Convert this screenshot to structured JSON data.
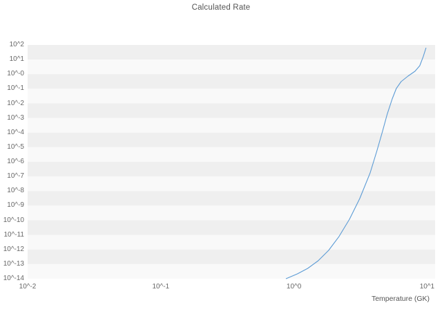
{
  "title": "Calculated Rate",
  "axes": {
    "xlabel": "Temperature (GK)",
    "x_ticks": [
      {
        "label": "10^-2",
        "log10": -2
      },
      {
        "label": "10^-1",
        "log10": -1
      },
      {
        "label": "10^0",
        "log10": 0
      },
      {
        "label": "10^1",
        "log10": 1
      }
    ],
    "y_ticks": [
      {
        "label": "10^2",
        "log10": 2
      },
      {
        "label": "10^1",
        "log10": 1
      },
      {
        "label": "10^-0",
        "log10": 0
      },
      {
        "label": "10^-1",
        "log10": -1
      },
      {
        "label": "10^-2",
        "log10": -2
      },
      {
        "label": "10^-3",
        "log10": -3
      },
      {
        "label": "10^-4",
        "log10": -4
      },
      {
        "label": "10^-5",
        "log10": -5
      },
      {
        "label": "10^-6",
        "log10": -6
      },
      {
        "label": "10^-7",
        "log10": -7
      },
      {
        "label": "10^-8",
        "log10": -8
      },
      {
        "label": "10^-9",
        "log10": -9
      },
      {
        "label": "10^-10",
        "log10": -10
      },
      {
        "label": "10^-11",
        "log10": -11
      },
      {
        "label": "10^-12",
        "log10": -12
      },
      {
        "label": "10^-13",
        "log10": -13
      },
      {
        "label": "10^-14",
        "log10": -14
      }
    ]
  },
  "chart_data": {
    "type": "line",
    "title": "Calculated Rate",
    "xlabel": "Temperature (GK)",
    "ylabel": "",
    "x_scale": "log",
    "y_scale": "log",
    "xlim_log10": [
      -2,
      1.06
    ],
    "ylim_log10": [
      -14,
      2
    ],
    "grid": "horizontal-bands",
    "band_colors": [
      "#efefef",
      "#f9f9f9"
    ],
    "legend": "none",
    "series": [
      {
        "name": "calculated-rate",
        "color": "#5b9bd5",
        "temperature_gk": [
          0.87,
          1.06,
          1.27,
          1.52,
          1.82,
          2.18,
          2.61,
          3.12,
          3.73,
          4.2,
          4.62,
          5.02,
          5.47,
          5.87,
          6.38,
          7.19,
          8.11,
          8.81,
          9.35,
          9.82
        ],
        "log10_rate": [
          -14,
          -13.67,
          -13.29,
          -12.77,
          -12.06,
          -11.11,
          -9.93,
          -8.51,
          -6.76,
          -5.24,
          -3.92,
          -2.73,
          -1.69,
          -0.98,
          -0.51,
          -0.13,
          0.2,
          0.58,
          1.2,
          1.81
        ]
      }
    ]
  }
}
